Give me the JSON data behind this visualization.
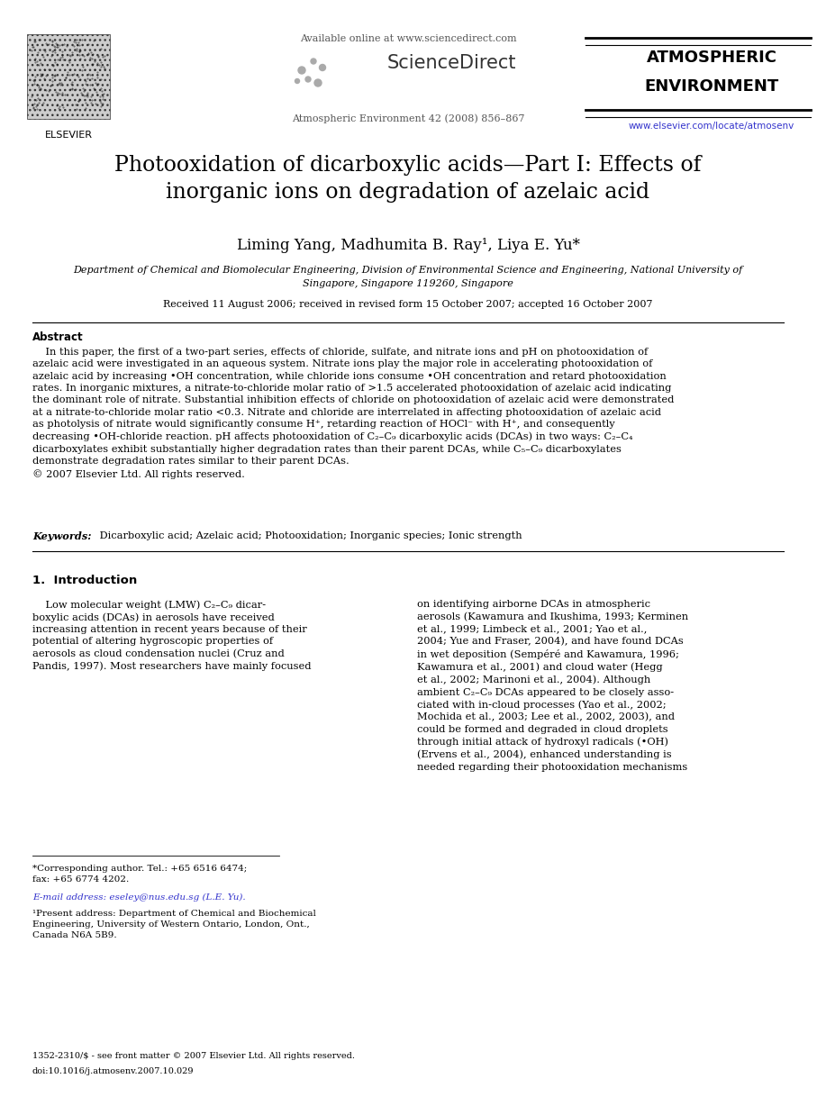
{
  "page_width": 9.07,
  "page_height": 12.38,
  "dpi": 100,
  "bg_color": "#ffffff",
  "header": {
    "available_online": "Available online at www.sciencedirect.com",
    "journal_info": "Atmospheric Environment 42 (2008) 856–867",
    "journal_name_line1": "ATMOSPHERIC",
    "journal_name_line2": "ENVIRONMENT",
    "elsevier_label": "ELSEVIER",
    "url": "www.elsevier.com/locate/atmosenv",
    "url_color": "#3333cc"
  },
  "title": "Photooxidation of dicarboxylic acids—Part I: Effects of\ninorganic ions on degradation of azelaic acid",
  "authors": "Liming Yang, Madhumita B. Ray¹, Liya E. Yu*",
  "affiliation_line1": "Department of Chemical and Biomolecular Engineering, Division of Environmental Science and Engineering, National University of",
  "affiliation_line2": "Singapore, Singapore 119260, Singapore",
  "received": "Received 11 August 2006; received in revised form 15 October 2007; accepted 16 October 2007",
  "abstract_label": "Abstract",
  "abstract_text": "    In this paper, the first of a two-part series, effects of chloride, sulfate, and nitrate ions and pH on photooxidation of\nazelaic acid were investigated in an aqueous system. Nitrate ions play the major role in accelerating photooxidation of\nazelaic acid by increasing •OH concentration, while chloride ions consume •OH concentration and retard photooxidation\nrates. In inorganic mixtures, a nitrate-to-chloride molar ratio of >1.5 accelerated photooxidation of azelaic acid indicating\nthe dominant role of nitrate. Substantial inhibition effects of chloride on photooxidation of azelaic acid were demonstrated\nat a nitrate-to-chloride molar ratio <0.3. Nitrate and chloride are interrelated in affecting photooxidation of azelaic acid\nas photolysis of nitrate would significantly consume H⁺, retarding reaction of HOCl⁻ with H⁺, and consequently\ndecreasing •OH-chloride reaction. pH affects photooxidation of C₂–C₉ dicarboxylic acids (DCAs) in two ways: C₂–C₄\ndicarboxylates exhibit substantially higher degradation rates than their parent DCAs, while C₅–C₉ dicarboxylates\ndemonstrate degradation rates similar to their parent DCAs.\n© 2007 Elsevier Ltd. All rights reserved.",
  "keywords_label": "Keywords:",
  "keywords_text": " Dicarboxylic acid; Azelaic acid; Photooxidation; Inorganic species; Ionic strength",
  "section1_title": "1.  Introduction",
  "intro_left": "    Low molecular weight (LMW) C₂–C₉ dicar-\nboxylic acids (DCAs) in aerosols have received\nincreasing attention in recent years because of their\npotential of altering hygroscopic properties of\naerosols as cloud condensation nuclei (Cruz and\nPandis, 1997). Most researchers have mainly focused",
  "intro_right": "on identifying airborne DCAs in atmospheric\naerosols (Kawamura and Ikushima, 1993; Kerminen\net al., 1999; Limbeck et al., 2001; Yao et al.,\n2004; Yue and Fraser, 2004), and have found DCAs\nin wet deposition (Sempéré and Kawamura, 1996;\nKawamura et al., 2001) and cloud water (Hegg\net al., 2002; Marinoni et al., 2004). Although\nambient C₂–C₉ DCAs appeared to be closely asso-\nciated with in-cloud processes (Yao et al., 2002;\nMochida et al., 2003; Lee et al., 2002, 2003), and\ncould be formed and degraded in cloud droplets\nthrough initial attack of hydroxyl radicals (•OH)\n(Ervens et al., 2004), enhanced understanding is\nneeded regarding their photooxidation mechanisms",
  "footnote_star": "*Corresponding author. Tel.: +65 6516 6474;\nfax: +65 6774 4202.",
  "footnote_email": "E-mail address: eseley@nus.edu.sg (L.E. Yu).",
  "footnote_1": "¹Present address: Department of Chemical and Biochemical\nEngineering, University of Western Ontario, London, Ont.,\nCanada N6A 5B9.",
  "bottom_line1": "1352-2310/$ - see front matter © 2007 Elsevier Ltd. All rights reserved.",
  "bottom_line2": "doi:10.1016/j.atmosenv.2007.10.029",
  "ref_color": "#3333cc",
  "text_color": "#000000"
}
